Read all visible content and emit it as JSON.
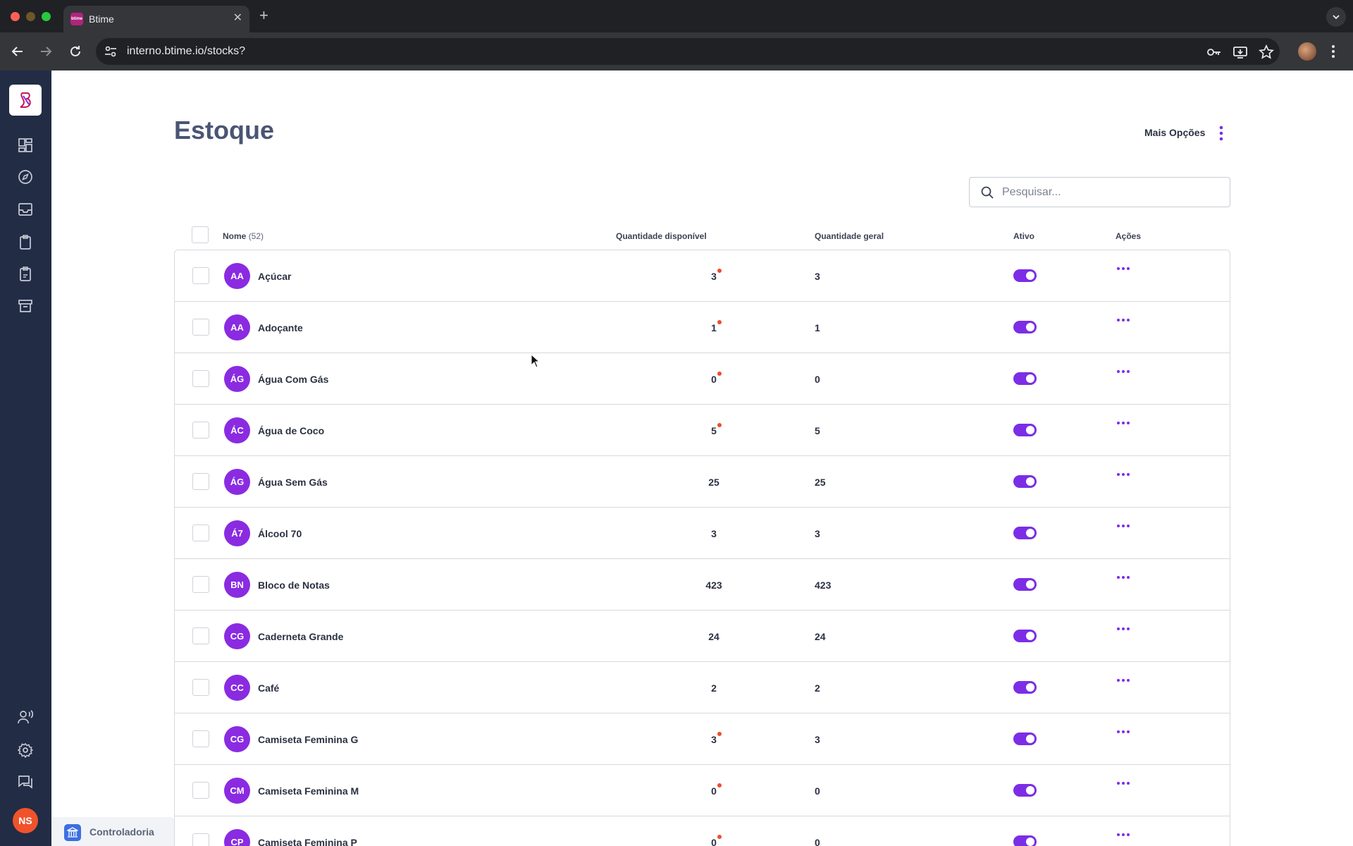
{
  "browser": {
    "tab_title": "Btime",
    "favicon_text": "btime",
    "url": "interno.btime.io/stocks?"
  },
  "app": {
    "user_initials": "NS",
    "footer_label": "Controladoria"
  },
  "page": {
    "title": "Estoque",
    "more_options_label": "Mais Opções",
    "search_placeholder": "Pesquisar..."
  },
  "table": {
    "headers": {
      "name": "Nome",
      "name_count": "(52)",
      "qty_available": "Quantidade disponível",
      "qty_total": "Quantidade geral",
      "active": "Ativo",
      "actions": "Ações"
    },
    "rows": [
      {
        "initials": "AA",
        "name": "Açúcar",
        "qty_available": "3",
        "qty_total": "3",
        "alert": true,
        "active": true
      },
      {
        "initials": "AA",
        "name": "Adoçante",
        "qty_available": "1",
        "qty_total": "1",
        "alert": true,
        "active": true
      },
      {
        "initials": "ÁG",
        "name": "Água Com Gás",
        "qty_available": "0",
        "qty_total": "0",
        "alert": true,
        "active": true
      },
      {
        "initials": "ÁC",
        "name": "Água de Coco",
        "qty_available": "5",
        "qty_total": "5",
        "alert": true,
        "active": true
      },
      {
        "initials": "ÁG",
        "name": "Água Sem Gás",
        "qty_available": "25",
        "qty_total": "25",
        "alert": false,
        "active": true
      },
      {
        "initials": "Á7",
        "name": "Álcool 70",
        "qty_available": "3",
        "qty_total": "3",
        "alert": false,
        "active": true
      },
      {
        "initials": "BN",
        "name": "Bloco de Notas",
        "qty_available": "423",
        "qty_total": "423",
        "alert": false,
        "active": true
      },
      {
        "initials": "CG",
        "name": "Caderneta Grande",
        "qty_available": "24",
        "qty_total": "24",
        "alert": false,
        "active": true
      },
      {
        "initials": "CC",
        "name": "Café",
        "qty_available": "2",
        "qty_total": "2",
        "alert": false,
        "active": true
      },
      {
        "initials": "CG",
        "name": "Camiseta Feminina G",
        "qty_available": "3",
        "qty_total": "3",
        "alert": true,
        "active": true
      },
      {
        "initials": "CM",
        "name": "Camiseta Feminina M",
        "qty_available": "0",
        "qty_total": "0",
        "alert": true,
        "active": true
      },
      {
        "initials": "CP",
        "name": "Camiseta Feminina P",
        "qty_available": "0",
        "qty_total": "0",
        "alert": true,
        "active": true
      }
    ]
  },
  "colors": {
    "accent": "#7b2ee6",
    "avatar": "#8a2be2",
    "sidebar": "#222c45",
    "alert_dot": "#ee4d2d",
    "user_avatar": "#f0532b"
  },
  "icons": {
    "sidebar_top": [
      "dashboard-icon",
      "compass-icon",
      "inbox-icon",
      "clipboard-icon",
      "clipboard-check-icon",
      "archive-icon"
    ],
    "sidebar_bottom": [
      "users-voice-icon",
      "gear-icon",
      "chat-icon"
    ]
  }
}
